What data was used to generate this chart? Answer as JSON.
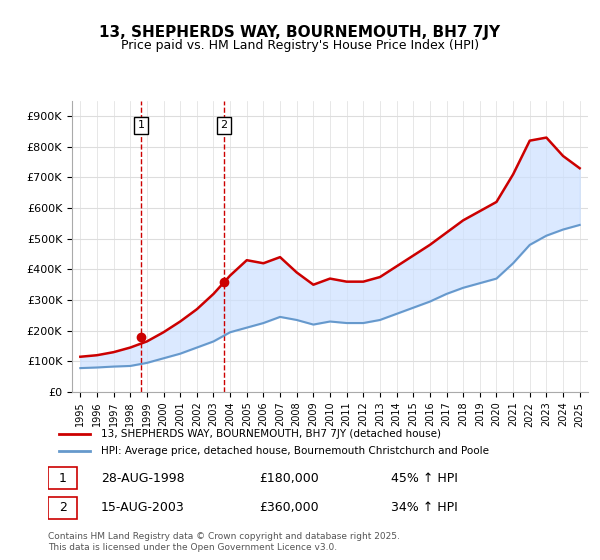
{
  "title": "13, SHEPHERDS WAY, BOURNEMOUTH, BH7 7JY",
  "subtitle": "Price paid vs. HM Land Registry's House Price Index (HPI)",
  "legend_line1": "13, SHEPHERDS WAY, BOURNEMOUTH, BH7 7JY (detached house)",
  "legend_line2": "HPI: Average price, detached house, Bournemouth Christchurch and Poole",
  "sale1_label": "1",
  "sale1_date": "28-AUG-1998",
  "sale1_price": "£180,000",
  "sale1_hpi": "45% ↑ HPI",
  "sale2_label": "2",
  "sale2_date": "15-AUG-2003",
  "sale2_price": "£360,000",
  "sale2_hpi": "34% ↑ HPI",
  "footer": "Contains HM Land Registry data © Crown copyright and database right 2025.\nThis data is licensed under the Open Government Licence v3.0.",
  "ylabel_ticks": [
    "£0",
    "£100K",
    "£200K",
    "£300K",
    "£400K",
    "£500K",
    "£600K",
    "£700K",
    "£800K",
    "£900K"
  ],
  "ytick_values": [
    0,
    100000,
    200000,
    300000,
    400000,
    500000,
    600000,
    700000,
    800000,
    900000
  ],
  "ylim": [
    0,
    950000
  ],
  "xlim_start": 1995.0,
  "xlim_end": 2025.5,
  "red_color": "#cc0000",
  "blue_color": "#6699cc",
  "shading_color": "#cce0ff",
  "grid_color": "#dddddd",
  "sale1_x": 1998.65,
  "sale1_y": 180000,
  "sale2_x": 2003.62,
  "sale2_y": 360000,
  "vline1_x": 1998.65,
  "vline2_x": 2003.62,
  "hpi_years": [
    1995,
    1996,
    1997,
    1998,
    1999,
    2000,
    2001,
    2002,
    2003,
    2004,
    2005,
    2006,
    2007,
    2008,
    2009,
    2010,
    2011,
    2012,
    2013,
    2014,
    2015,
    2016,
    2017,
    2018,
    2019,
    2020,
    2021,
    2022,
    2023,
    2024,
    2025
  ],
  "hpi_values": [
    78000,
    80000,
    83000,
    85000,
    95000,
    110000,
    125000,
    145000,
    165000,
    195000,
    210000,
    225000,
    245000,
    235000,
    220000,
    230000,
    225000,
    225000,
    235000,
    255000,
    275000,
    295000,
    320000,
    340000,
    355000,
    370000,
    420000,
    480000,
    510000,
    530000,
    545000
  ],
  "red_years": [
    1995,
    1996,
    1997,
    1998,
    1999,
    2000,
    2001,
    2002,
    2003,
    2004,
    2005,
    2006,
    2007,
    2008,
    2009,
    2010,
    2011,
    2012,
    2013,
    2014,
    2015,
    2016,
    2017,
    2018,
    2019,
    2020,
    2021,
    2022,
    2023,
    2024,
    2025
  ],
  "red_values": [
    115000,
    120000,
    130000,
    145000,
    165000,
    195000,
    230000,
    270000,
    320000,
    380000,
    430000,
    420000,
    440000,
    390000,
    350000,
    370000,
    360000,
    360000,
    375000,
    410000,
    445000,
    480000,
    520000,
    560000,
    590000,
    620000,
    710000,
    820000,
    830000,
    770000,
    730000
  ]
}
